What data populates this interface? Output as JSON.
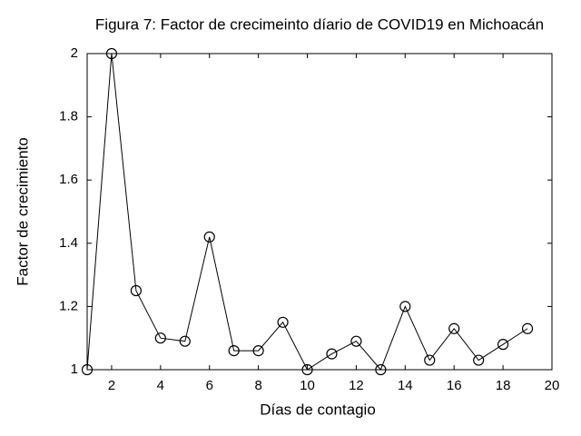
{
  "chart_data": {
    "type": "line",
    "title": "Figura 7: Factor de crecimeinto díario de COVID19 en Michoacán",
    "x_label": "Días de contagio",
    "y_label": "Factor de crecimiento",
    "x": [
      1,
      2,
      3,
      4,
      5,
      6,
      7,
      8,
      9,
      10,
      11,
      12,
      13,
      14,
      15,
      16,
      17,
      18,
      19
    ],
    "series": [
      {
        "color": "#000000",
        "values": [
          1,
          2,
          1.25,
          1.1,
          1.09,
          1.42,
          1.06,
          1.06,
          1.15,
          1,
          1.05,
          1.09,
          1,
          1.2,
          1.03,
          1.13,
          1.03,
          1.08,
          1.13
        ]
      }
    ],
    "xlim": [
      1,
      20
    ],
    "xticks": [
      2,
      4,
      6,
      8,
      10,
      12,
      14,
      16,
      18,
      20
    ],
    "ylim": [
      1,
      2
    ],
    "yticks": [
      1,
      1.2,
      1.4,
      1.6,
      1.8,
      2
    ],
    "grid": false
  }
}
